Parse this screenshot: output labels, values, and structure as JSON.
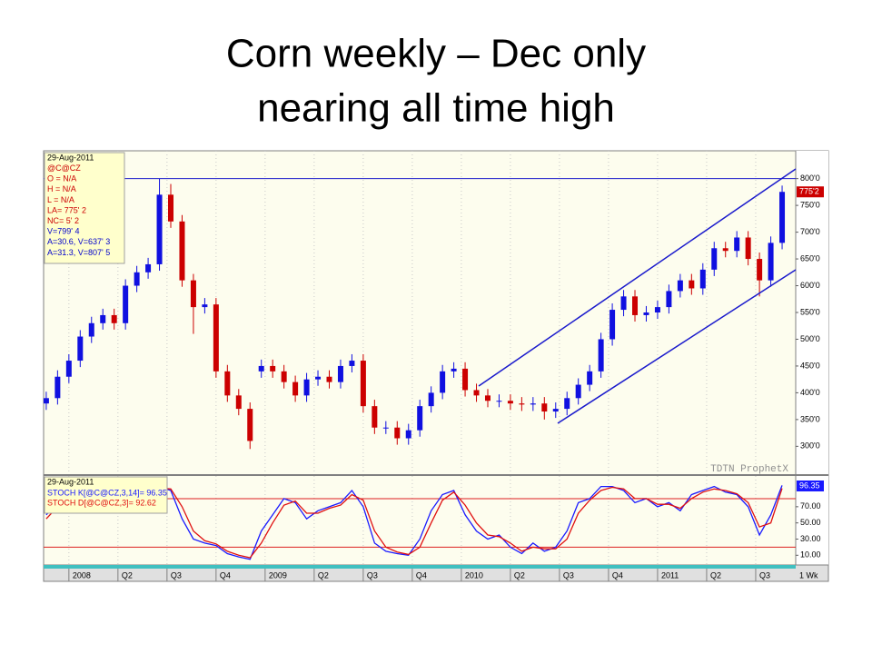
{
  "title": [
    "Corn weekly – Dec only",
    "nearing all time high"
  ],
  "info_box": [
    {
      "text": "29-Aug-2011",
      "color": "#000000"
    },
    {
      "text": "@C@CZ",
      "color": "#cc0000"
    },
    {
      "text": "O = N/A",
      "color": "#cc0000"
    },
    {
      "text": "H = N/A",
      "color": "#cc0000"
    },
    {
      "text": "L = N/A",
      "color": "#cc0000"
    },
    {
      "text": "LA= 775' 2",
      "color": "#cc0000"
    },
    {
      "text": "NC= 5' 2",
      "color": "#cc0000"
    },
    {
      "text": "V=799' 4",
      "color": "#0000cc"
    },
    {
      "text": "A=30.6, V=637' 3",
      "color": "#0000cc"
    },
    {
      "text": "A=31.3, V=807' 5",
      "color": "#0000cc"
    }
  ],
  "watermark": "TDTN ProphetX",
  "interval_label": "1 Wk",
  "chart_data": [
    {
      "type": "candlestick",
      "up_color": "#1010e0",
      "down_color": "#cc0000",
      "x": [
        -6,
        -3,
        0,
        3,
        6,
        9,
        12,
        15,
        18,
        21,
        24,
        27,
        30,
        33,
        36,
        39,
        42,
        45,
        48,
        51,
        54,
        57,
        60,
        63,
        66,
        69,
        72,
        75,
        78,
        81,
        84,
        87,
        90,
        93,
        96,
        99,
        102,
        105,
        108,
        111,
        114,
        117,
        120,
        123,
        126,
        129,
        132,
        135,
        138,
        141,
        144,
        147,
        150,
        153,
        156,
        159,
        162,
        165,
        168,
        171,
        174,
        177,
        180,
        183,
        186,
        189
      ],
      "open": [
        380,
        390,
        430,
        460,
        505,
        530,
        545,
        530,
        600,
        625,
        640,
        770,
        720,
        610,
        560,
        565,
        440,
        395,
        370,
        440,
        450,
        440,
        420,
        395,
        425,
        430,
        420,
        450,
        460,
        375,
        335,
        335,
        315,
        330,
        375,
        400,
        440,
        445,
        405,
        395,
        385,
        385,
        380,
        378,
        380,
        365,
        370,
        390,
        415,
        440,
        500,
        555,
        580,
        545,
        550,
        560,
        590,
        610,
        595,
        630,
        670,
        665,
        690,
        650,
        610,
        680
      ],
      "high": [
        402,
        442,
        472,
        517,
        542,
        557,
        557,
        612,
        637,
        652,
        800,
        790,
        732,
        622,
        577,
        577,
        452,
        407,
        382,
        462,
        462,
        452,
        432,
        437,
        442,
        442,
        462,
        472,
        472,
        387,
        347,
        347,
        342,
        387,
        412,
        452,
        457,
        457,
        417,
        407,
        397,
        397,
        392,
        392,
        392,
        382,
        402,
        427,
        452,
        512,
        567,
        592,
        592,
        562,
        572,
        602,
        622,
        622,
        642,
        682,
        682,
        702,
        702,
        662,
        692,
        787
      ],
      "low": [
        368,
        378,
        418,
        448,
        493,
        518,
        518,
        518,
        588,
        613,
        628,
        708,
        598,
        510,
        548,
        428,
        383,
        358,
        295,
        428,
        428,
        408,
        383,
        383,
        413,
        408,
        408,
        438,
        363,
        323,
        323,
        303,
        303,
        318,
        363,
        388,
        428,
        393,
        383,
        373,
        373,
        368,
        366,
        366,
        350,
        353,
        358,
        378,
        403,
        428,
        488,
        543,
        533,
        533,
        538,
        548,
        578,
        583,
        583,
        618,
        653,
        653,
        638,
        580,
        598,
        668
      ],
      "close": [
        390,
        430,
        460,
        505,
        530,
        545,
        530,
        600,
        625,
        640,
        770,
        720,
        610,
        560,
        565,
        440,
        395,
        370,
        310,
        450,
        440,
        420,
        395,
        425,
        430,
        420,
        450,
        460,
        375,
        335,
        335,
        315,
        330,
        375,
        400,
        440,
        445,
        405,
        395,
        385,
        385,
        380,
        378,
        380,
        365,
        370,
        390,
        415,
        440,
        500,
        555,
        580,
        545,
        550,
        560,
        590,
        610,
        595,
        630,
        670,
        665,
        690,
        650,
        610,
        680,
        775.25
      ],
      "last_close_label": "775'2",
      "xlim": [
        -6.7,
        192.6
      ],
      "ylim": [
        248,
        852
      ],
      "yticks": [
        {
          "value": 300,
          "label": "300'0"
        },
        {
          "value": 350,
          "label": "350'0"
        },
        {
          "value": 400,
          "label": "400'0"
        },
        {
          "value": 450,
          "label": "450'0"
        },
        {
          "value": 500,
          "label": "500'0"
        },
        {
          "value": 550,
          "label": "550'0"
        },
        {
          "value": 600,
          "label": "600'0"
        },
        {
          "value": 650,
          "label": "650'0"
        },
        {
          "value": 700,
          "label": "700'0"
        },
        {
          "value": 750,
          "label": "750'0"
        },
        {
          "value": 800,
          "label": "800'0"
        }
      ],
      "hlines": [
        800
      ],
      "hline_color": "#2020cc",
      "grid": true
    },
    {
      "type": "line",
      "legend_date": "29-Aug-2011",
      "x": [
        -6,
        -3,
        0,
        3,
        6,
        9,
        12,
        15,
        18,
        21,
        24,
        27,
        30,
        33,
        36,
        39,
        42,
        45,
        48,
        51,
        54,
        57,
        60,
        63,
        66,
        69,
        72,
        75,
        78,
        81,
        84,
        87,
        90,
        93,
        96,
        99,
        102,
        105,
        108,
        111,
        114,
        117,
        120,
        123,
        126,
        129,
        132,
        135,
        138,
        141,
        144,
        147,
        150,
        153,
        156,
        159,
        162,
        165,
        168,
        171,
        174,
        177,
        180,
        183,
        186,
        189
      ],
      "series": [
        {
          "name": "STOCH K[@C@CZ,3,14]= 96.35",
          "color": "#1a1aff",
          "values": [
            60,
            75,
            85,
            88,
            90,
            85,
            80,
            88,
            90,
            92,
            95,
            90,
            55,
            30,
            25,
            22,
            12,
            8,
            5,
            40,
            60,
            80,
            75,
            55,
            65,
            70,
            75,
            90,
            70,
            25,
            15,
            12,
            10,
            30,
            65,
            85,
            90,
            60,
            40,
            30,
            35,
            20,
            12,
            25,
            15,
            20,
            40,
            75,
            80,
            95,
            95,
            90,
            75,
            80,
            70,
            75,
            65,
            85,
            90,
            95,
            88,
            85,
            70,
            35,
            60,
            96.35
          ]
        },
        {
          "name": "STOCH D[@C@CZ,3]= 92.62",
          "color": "#e01010",
          "values": [
            55,
            70,
            80,
            86,
            88,
            87,
            82,
            85,
            89,
            91,
            93,
            92,
            70,
            40,
            28,
            24,
            15,
            10,
            7,
            25,
            50,
            72,
            77,
            62,
            62,
            68,
            72,
            85,
            78,
            40,
            20,
            14,
            11,
            20,
            50,
            78,
            88,
            72,
            50,
            35,
            33,
            25,
            15,
            20,
            18,
            18,
            30,
            62,
            78,
            90,
            94,
            92,
            80,
            80,
            73,
            73,
            68,
            80,
            88,
            92,
            90,
            86,
            75,
            45,
            50,
            92.62
          ]
        }
      ],
      "xlim": [
        -6.7,
        192.6
      ],
      "ylim": [
        -2,
        108
      ],
      "yticks": [
        {
          "value": 10,
          "label": "10.00"
        },
        {
          "value": 30,
          "label": "30.00"
        },
        {
          "value": 50,
          "label": "50.00"
        },
        {
          "value": 70,
          "label": "70.00"
        }
      ],
      "xticks": [
        {
          "value": 0,
          "label": "2008"
        },
        {
          "value": 13,
          "label": "Q2"
        },
        {
          "value": 26,
          "label": "Q3"
        },
        {
          "value": 39,
          "label": "Q4"
        },
        {
          "value": 52,
          "label": "2009"
        },
        {
          "value": 65,
          "label": "Q2"
        },
        {
          "value": 78,
          "label": "Q3"
        },
        {
          "value": 91,
          "label": "Q4"
        },
        {
          "value": 104,
          "label": "2010"
        },
        {
          "value": 117,
          "label": "Q2"
        },
        {
          "value": 130,
          "label": "Q3"
        },
        {
          "value": 143,
          "label": "Q4"
        },
        {
          "value": 156,
          "label": "2011"
        },
        {
          "value": 169,
          "label": "Q2"
        },
        {
          "value": 182,
          "label": "Q3"
        }
      ],
      "hlines": [
        20,
        80
      ],
      "hline_color": "#dd2020",
      "grid": true
    }
  ]
}
